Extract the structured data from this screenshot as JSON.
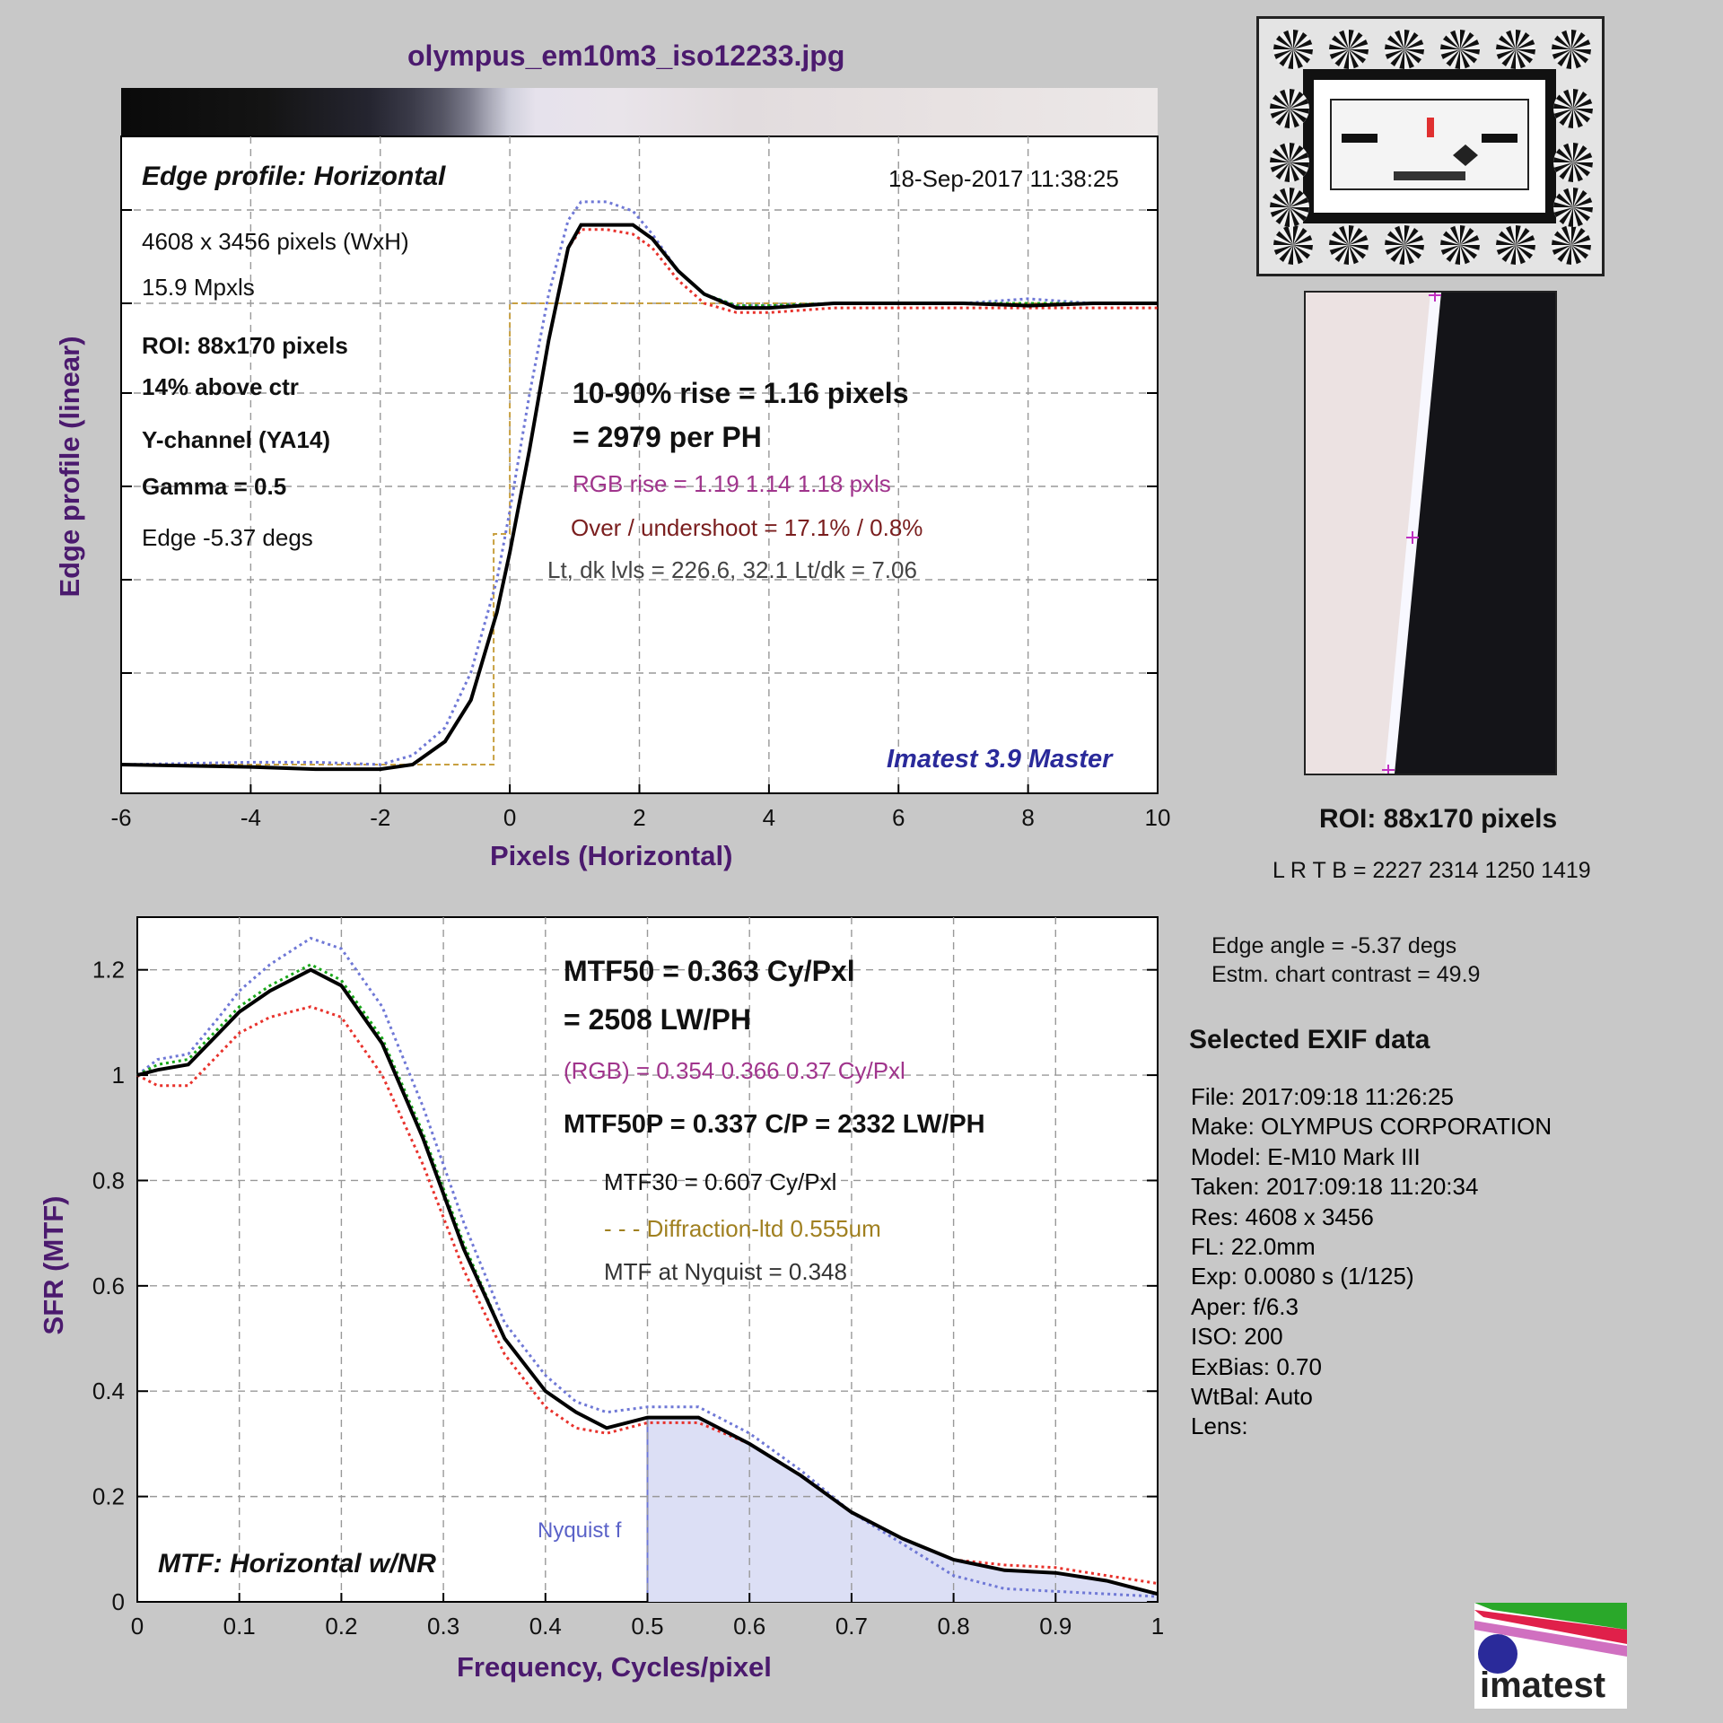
{
  "header": {
    "filename": "olympus_em10m3_iso12233.jpg"
  },
  "edge_panel": {
    "title": "Edge profile: Horizontal",
    "timestamp": "18-Sep-2017 11:38:25",
    "dimensions": "4608 x 3456 pixels (WxH)",
    "mpxls": "15.9 Mpxls",
    "roi": "ROI:  88x170 pixels",
    "position": "14% above ctr",
    "channel": "Y-channel  (YA14)",
    "gamma": "Gamma = 0.5",
    "edge_angle": "Edge -5.37 degs",
    "rise": "10-90% rise = 1.16 pixels",
    "per_ph": "= 2979 per PH",
    "rgb_rise": "RGB rise = 1.19  1.14  1.18 pxls",
    "overshoot": "Over / undershoot = 17.1% / 0.8%",
    "levels": "Lt, dk lvls = 226.6, 32.1   Lt/dk = 7.06",
    "software": "Imatest 3.9 Master",
    "ylabel": "Edge profile (linear)",
    "xlabel": "Pixels (Horizontal)"
  },
  "mtf_panel": {
    "mtf50": "MTF50 = 0.363 Cy/Pxl",
    "mtf50_lwph": "= 2508 LW/PH",
    "rgb": "(RGB) = 0.354  0.366  0.37 Cy/Pxl",
    "mtf50p": "MTF50P = 0.337 C/P = 2332 LW/PH",
    "mtf30": "MTF30 = 0.607  Cy/Pxl",
    "diffraction": "- - - Diffraction-ltd  0.555um",
    "nyquist_mtf": "MTF at Nyquist = 0.348",
    "nyquist_label": "Nyquist f",
    "title": "MTF: Horizontal w/NR",
    "ylabel": "SFR (MTF)",
    "xlabel": "Frequency, Cycles/pixel"
  },
  "roi_panel": {
    "label": "ROI:  88x170 pixels",
    "coords": "L R  T B = 2227 2314   1250 1419",
    "edge_angle": "Edge angle = -5.37 degs",
    "contrast": "Estm. chart contrast = 49.9"
  },
  "exif": {
    "heading": "Selected EXIF data",
    "lines": [
      "File:  2017:09:18 11:26:25",
      "Make:  OLYMPUS CORPORATION",
      "Model:  E-M10 Mark III",
      "Taken: 2017:09:18 11:20:34",
      "Res:    4608 x 3456",
      "FL:      22.0mm",
      "Exp:    0.0080 s  (1/125)",
      "Aper:   f/6.3",
      "ISO:    200",
      "ExBias: 0.70",
      "WtBal: Auto",
      "Lens:"
    ]
  },
  "logo": {
    "text": "imatest"
  },
  "colors": {
    "title": "#4b1a6e",
    "luminance": "#000000",
    "red": "#e8322c",
    "green": "#1aa81a",
    "blue": "#6f78d6",
    "diffraction": "#c8a040",
    "nyquist_fill": "#dcdff5",
    "rgb_text": "#a0348c",
    "overshoot_text": "#7a1e1e",
    "software_text": "#2a2a9a"
  },
  "chart_data": [
    {
      "type": "line",
      "title": "Edge profile: Horizontal",
      "xlabel": "Pixels (Horizontal)",
      "ylabel": "Edge profile (linear)",
      "xlim": [
        -6,
        10
      ],
      "x_ticks": [
        "-6",
        "-4",
        "-2",
        "0",
        "2",
        "4",
        "6",
        "8",
        "10"
      ],
      "series": [
        {
          "name": "Y",
          "color": "#000000",
          "x": [
            -6,
            -4,
            -3,
            -2,
            -1.5,
            -1,
            -0.6,
            -0.2,
            0,
            0.3,
            0.6,
            0.9,
            1.1,
            1.5,
            1.9,
            2.2,
            2.6,
            3,
            3.5,
            4,
            5,
            6,
            7,
            8,
            9,
            10
          ],
          "y": [
            0.0,
            -0.005,
            -0.01,
            -0.01,
            0.0,
            0.05,
            0.14,
            0.33,
            0.46,
            0.68,
            0.92,
            1.12,
            1.17,
            1.17,
            1.17,
            1.14,
            1.07,
            1.02,
            0.99,
            0.99,
            1.0,
            1.0,
            1.0,
            0.995,
            1.0,
            1.0
          ]
        },
        {
          "name": "R",
          "color": "#e8322c",
          "x": [
            -6,
            -4,
            -3,
            -2,
            -1.5,
            -1,
            -0.6,
            -0.2,
            0,
            0.3,
            0.6,
            0.9,
            1.1,
            1.5,
            1.9,
            2.2,
            2.6,
            3,
            3.5,
            4,
            5,
            6,
            7,
            8,
            9,
            10
          ],
          "y": [
            0.0,
            -0.005,
            -0.01,
            -0.01,
            0.0,
            0.05,
            0.14,
            0.33,
            0.46,
            0.68,
            0.92,
            1.12,
            1.16,
            1.16,
            1.15,
            1.12,
            1.05,
            1.0,
            0.98,
            0.98,
            0.99,
            0.99,
            0.99,
            0.99,
            0.99,
            0.99
          ]
        },
        {
          "name": "G",
          "color": "#1aa81a",
          "x": [
            -6,
            -4,
            -3,
            -2,
            -1.5,
            -1,
            -0.6,
            -0.2,
            0,
            0.3,
            0.6,
            0.9,
            1.1,
            1.5,
            1.9,
            2.2,
            2.6,
            3,
            3.5,
            4,
            5,
            6,
            7,
            8,
            9,
            10
          ],
          "y": [
            0.0,
            -0.005,
            -0.01,
            -0.01,
            0.0,
            0.05,
            0.14,
            0.33,
            0.46,
            0.68,
            0.92,
            1.12,
            1.17,
            1.17,
            1.17,
            1.14,
            1.07,
            1.02,
            0.995,
            0.995,
            1.0,
            1.0,
            1.0,
            1.0,
            1.0,
            1.0
          ]
        },
        {
          "name": "B",
          "color": "#6f78d6",
          "x": [
            -6,
            -4,
            -3,
            -2,
            -1.5,
            -1,
            -0.6,
            -0.2,
            0,
            0.3,
            0.6,
            0.9,
            1.1,
            1.5,
            1.9,
            2.2,
            2.6,
            3,
            3.5,
            4,
            5,
            6,
            7,
            8,
            9,
            10
          ],
          "y": [
            0.0,
            0.005,
            0.005,
            0.0,
            0.02,
            0.08,
            0.2,
            0.4,
            0.55,
            0.8,
            1.02,
            1.18,
            1.22,
            1.22,
            1.2,
            1.15,
            1.07,
            1.02,
            0.995,
            0.995,
            1.0,
            1.0,
            1.0,
            1.01,
            1.0,
            1.0
          ]
        },
        {
          "name": "Ideal",
          "color": "#c8a040",
          "x": [
            -6,
            -0.25,
            -0.25,
            0,
            0,
            10
          ],
          "y": [
            0.0,
            0.0,
            0.5,
            0.5,
            1.0,
            1.0
          ]
        }
      ]
    },
    {
      "type": "line",
      "title": "MTF: Horizontal w/NR",
      "xlabel": "Frequency, Cycles/pixel",
      "ylabel": "SFR (MTF)",
      "xlim": [
        0,
        1
      ],
      "ylim": [
        0,
        1.3
      ],
      "x_ticks": [
        "0",
        "0.1",
        "0.2",
        "0.3",
        "0.4",
        "0.5",
        "0.6",
        "0.7",
        "0.8",
        "0.9",
        "1"
      ],
      "y_ticks": [
        "0",
        "0.2",
        "0.4",
        "0.6",
        "0.8",
        "1",
        "1.2"
      ],
      "nyquist": 0.5,
      "series": [
        {
          "name": "Y",
          "color": "#000000",
          "x": [
            0,
            0.02,
            0.05,
            0.08,
            0.1,
            0.13,
            0.17,
            0.2,
            0.24,
            0.28,
            0.32,
            0.36,
            0.4,
            0.43,
            0.46,
            0.5,
            0.55,
            0.6,
            0.65,
            0.7,
            0.75,
            0.8,
            0.85,
            0.9,
            0.95,
            1
          ],
          "y": [
            1.0,
            1.01,
            1.02,
            1.08,
            1.12,
            1.16,
            1.2,
            1.17,
            1.06,
            0.88,
            0.67,
            0.5,
            0.4,
            0.36,
            0.33,
            0.35,
            0.35,
            0.3,
            0.24,
            0.17,
            0.12,
            0.08,
            0.06,
            0.055,
            0.04,
            0.015
          ]
        },
        {
          "name": "R",
          "color": "#e8322c",
          "x": [
            0,
            0.02,
            0.05,
            0.08,
            0.1,
            0.13,
            0.17,
            0.2,
            0.24,
            0.28,
            0.32,
            0.36,
            0.4,
            0.43,
            0.46,
            0.5,
            0.55,
            0.6,
            0.65,
            0.7,
            0.75,
            0.8,
            0.85,
            0.9,
            0.95,
            1
          ],
          "y": [
            1.0,
            0.98,
            0.98,
            1.04,
            1.08,
            1.11,
            1.13,
            1.11,
            1.0,
            0.83,
            0.63,
            0.47,
            0.37,
            0.33,
            0.32,
            0.34,
            0.34,
            0.3,
            0.24,
            0.17,
            0.12,
            0.08,
            0.07,
            0.065,
            0.05,
            0.035
          ]
        },
        {
          "name": "G",
          "color": "#1aa81a",
          "x": [
            0,
            0.02,
            0.05,
            0.08,
            0.1,
            0.13,
            0.17,
            0.2,
            0.24,
            0.28,
            0.32,
            0.36,
            0.4,
            0.43,
            0.46,
            0.5,
            0.55,
            0.6,
            0.65,
            0.7,
            0.75,
            0.8,
            0.85,
            0.9,
            0.95,
            1
          ],
          "y": [
            1.0,
            1.02,
            1.03,
            1.09,
            1.13,
            1.17,
            1.21,
            1.18,
            1.07,
            0.89,
            0.68,
            0.5,
            0.4,
            0.36,
            0.33,
            0.35,
            0.35,
            0.3,
            0.24,
            0.17,
            0.12,
            0.08,
            0.06,
            0.055,
            0.04,
            0.015
          ]
        },
        {
          "name": "B",
          "color": "#6f78d6",
          "x": [
            0,
            0.02,
            0.05,
            0.08,
            0.1,
            0.13,
            0.17,
            0.2,
            0.24,
            0.28,
            0.32,
            0.36,
            0.4,
            0.43,
            0.46,
            0.5,
            0.55,
            0.6,
            0.65,
            0.7,
            0.75,
            0.8,
            0.85,
            0.9,
            0.95,
            1
          ],
          "y": [
            1.0,
            1.03,
            1.04,
            1.11,
            1.16,
            1.21,
            1.26,
            1.24,
            1.13,
            0.94,
            0.72,
            0.53,
            0.43,
            0.38,
            0.36,
            0.37,
            0.37,
            0.32,
            0.25,
            0.17,
            0.11,
            0.05,
            0.025,
            0.02,
            0.015,
            0.01
          ]
        }
      ]
    }
  ]
}
